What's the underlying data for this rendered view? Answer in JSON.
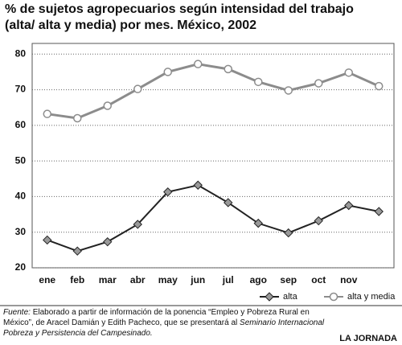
{
  "chart_data": {
    "type": "line",
    "title": "% de sujetos agropecuarios según intensidad del trabajo",
    "subtitle": "(alta/ alta y media) por mes. México, 2002",
    "categories": [
      "ene",
      "feb",
      "mar",
      "abr",
      "may",
      "jun",
      "jul",
      "ago",
      "sep",
      "oct",
      "nov",
      null
    ],
    "series": [
      {
        "name": "alta",
        "color": "#222222",
        "marker": "diamond",
        "values": [
          27.8,
          24.7,
          27.3,
          32.2,
          41.3,
          43.2,
          38.3,
          32.5,
          29.8,
          33.2,
          37.5,
          35.8
        ]
      },
      {
        "name": "alta y media",
        "color": "#8c8c8c",
        "marker": "circle",
        "values": [
          63.2,
          62,
          65.5,
          70.2,
          75,
          77.2,
          75.8,
          72.2,
          69.8,
          71.8,
          74.8,
          71
        ]
      }
    ],
    "ylim": [
      20,
      83
    ],
    "yticks": [
      20,
      30,
      40,
      50,
      60,
      70,
      80
    ],
    "grid": true,
    "legend": "bottom",
    "source_label": "Fuente:",
    "source_text": "Elaborado a partir de información de la ponencia “Empleo y Pobreza Rural en México”, de Aracel Damián y Edith Pacheco, que se presentará al",
    "source_event": "Seminario Internacional Pobreza y Persistencia del Campesinado.",
    "credit": "LA JORNADA"
  }
}
